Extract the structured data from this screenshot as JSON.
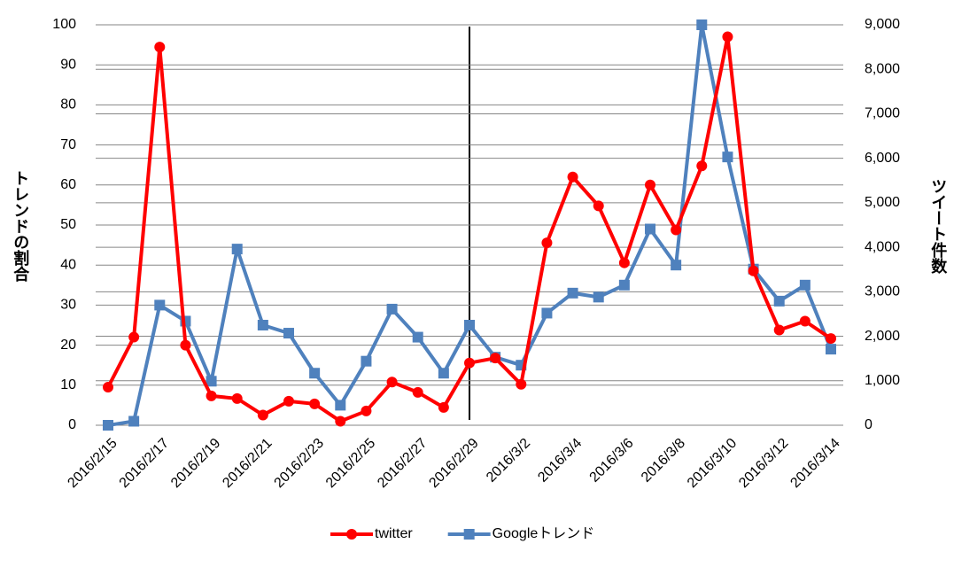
{
  "chart_data": {
    "type": "line",
    "y_label": "トレンドの割合",
    "y2_label": "ツイート件数",
    "categories": [
      "2016/2/15",
      null,
      "2016/2/17",
      null,
      "2016/2/19",
      null,
      "2016/2/21",
      null,
      "2016/2/23",
      null,
      "2016/2/25",
      null,
      "2016/2/27",
      null,
      "2016/2/29",
      null,
      "2016/3/2",
      null,
      "2016/3/4",
      null,
      "2016/3/6",
      null,
      "2016/3/8",
      null,
      "2016/3/10",
      null,
      "2016/3/12",
      null,
      "2016/3/14"
    ],
    "series": [
      {
        "name": "twitter",
        "color": "#ff0000",
        "axis": "y2",
        "marker": "circle",
        "values": [
          855,
          1980,
          8500,
          1800,
          660,
          600,
          230,
          540,
          480,
          90,
          320,
          970,
          740,
          400,
          1400,
          1510,
          920,
          4100,
          5580,
          4930,
          3650,
          5400,
          4390,
          5830,
          8730,
          3470,
          2140,
          2340,
          1950
        ]
      },
      {
        "name": "Googleトレンド",
        "color": "#4f81bd",
        "marker": "square",
        "values": [
          0,
          1,
          30,
          26,
          11,
          44,
          25,
          23,
          13,
          5,
          16,
          29,
          22,
          13,
          25,
          17,
          15,
          28,
          33,
          32,
          35,
          49,
          40,
          100,
          67,
          39,
          31,
          35,
          19
        ]
      }
    ],
    "ylim": [
      0,
      100
    ],
    "yticks": [
      0,
      10,
      20,
      30,
      40,
      50,
      60,
      70,
      80,
      90,
      100
    ],
    "y2lim": [
      0,
      9000
    ],
    "y2ticks": [
      0,
      {
        "value": 1000,
        "label": "1,000"
      },
      {
        "value": 2000,
        "label": "2,000"
      },
      {
        "value": 3000,
        "label": "3,000"
      },
      {
        "value": 4000,
        "label": "4,000"
      },
      {
        "value": 5000,
        "label": "5,000"
      },
      {
        "value": 6000,
        "label": "6,000"
      },
      {
        "value": 7000,
        "label": "7,000"
      },
      {
        "value": 8000,
        "label": "8,000"
      },
      {
        "value": 9000,
        "label": "9,000"
      }
    ],
    "grid": true,
    "legend": "bottom"
  }
}
